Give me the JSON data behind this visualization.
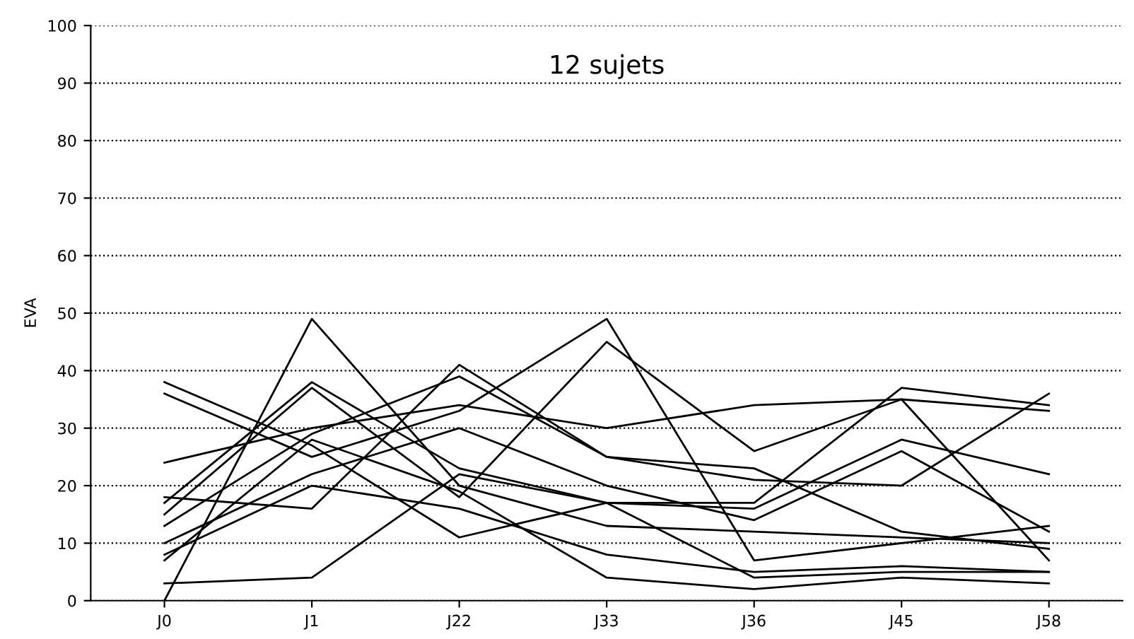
{
  "chart_data": {
    "type": "line",
    "title": "12 sujets",
    "ylabel": "EVA",
    "categories": [
      "J0",
      "J1",
      "J22",
      "J33",
      "J36",
      "J45",
      "J58"
    ],
    "ylim": [
      0,
      100
    ],
    "yticks": [
      0,
      10,
      20,
      30,
      40,
      50,
      60,
      70,
      80,
      90,
      100
    ],
    "grid": "y",
    "legend": false,
    "marker": "none",
    "line_style": "solid",
    "series": [
      {
        "color": "#000000",
        "values": [
          0,
          49,
          20,
          13,
          12,
          11,
          10
        ]
      },
      {
        "color": "#000000",
        "values": [
          38,
          27,
          11,
          17,
          17,
          37,
          34
        ]
      },
      {
        "color": "#000000",
        "values": [
          36,
          25,
          33,
          49,
          7,
          10,
          13
        ]
      },
      {
        "color": "#000000",
        "values": [
          24,
          30,
          34,
          30,
          34,
          35,
          33
        ]
      },
      {
        "color": "#000000",
        "values": [
          18,
          16,
          41,
          25,
          21,
          20,
          36
        ]
      },
      {
        "color": "#000000",
        "values": [
          17,
          38,
          23,
          17,
          16,
          28,
          22
        ]
      },
      {
        "color": "#000000",
        "values": [
          15,
          37,
          18,
          45,
          26,
          35,
          7
        ]
      },
      {
        "color": "#000000",
        "values": [
          13,
          29,
          39,
          25,
          23,
          12,
          9
        ]
      },
      {
        "color": "#000000",
        "values": [
          10,
          22,
          30,
          20,
          14,
          26,
          12
        ]
      },
      {
        "color": "#000000",
        "values": [
          8,
          20,
          16,
          8,
          5,
          6,
          5
        ]
      },
      {
        "color": "#000000",
        "values": [
          7,
          28,
          19,
          4,
          2,
          4,
          3
        ]
      },
      {
        "color": "#000000",
        "values": [
          3,
          4,
          22,
          17,
          4,
          5,
          5
        ]
      }
    ]
  }
}
